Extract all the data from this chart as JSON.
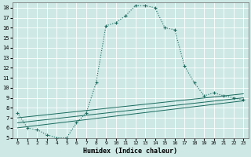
{
  "xlabel": "Humidex (Indice chaleur)",
  "background_color": "#cde8e5",
  "grid_color": "#ffffff",
  "line_color": "#1a6b5e",
  "xlim": [
    -0.5,
    23.5
  ],
  "ylim": [
    5,
    18.5
  ],
  "x_ticks": [
    0,
    1,
    2,
    3,
    4,
    5,
    6,
    7,
    8,
    9,
    10,
    11,
    12,
    13,
    14,
    15,
    16,
    17,
    18,
    19,
    20,
    21,
    22,
    23
  ],
  "y_ticks": [
    5,
    6,
    7,
    8,
    9,
    10,
    11,
    12,
    13,
    14,
    15,
    16,
    17,
    18
  ],
  "series1_x": [
    0,
    1,
    2,
    3,
    4,
    5,
    6,
    7,
    8,
    9,
    10,
    11,
    12,
    13,
    14,
    15,
    16,
    17,
    18,
    19,
    20,
    21,
    22,
    23
  ],
  "series1_y": [
    7.5,
    6.0,
    5.8,
    5.3,
    5.0,
    5.0,
    6.5,
    7.5,
    10.5,
    16.2,
    16.5,
    17.2,
    18.2,
    18.2,
    18.0,
    16.0,
    15.8,
    12.2,
    10.5,
    9.2,
    9.5,
    9.2,
    9.0,
    8.8
  ],
  "series2_x": [
    0,
    23
  ],
  "series2_y": [
    6.0,
    8.7
  ],
  "series3_x": [
    0,
    23
  ],
  "series3_y": [
    6.5,
    9.0
  ],
  "series4_x": [
    0,
    23
  ],
  "series4_y": [
    7.0,
    9.4
  ],
  "figwidth": 3.2,
  "figheight": 2.0,
  "dpi": 100
}
